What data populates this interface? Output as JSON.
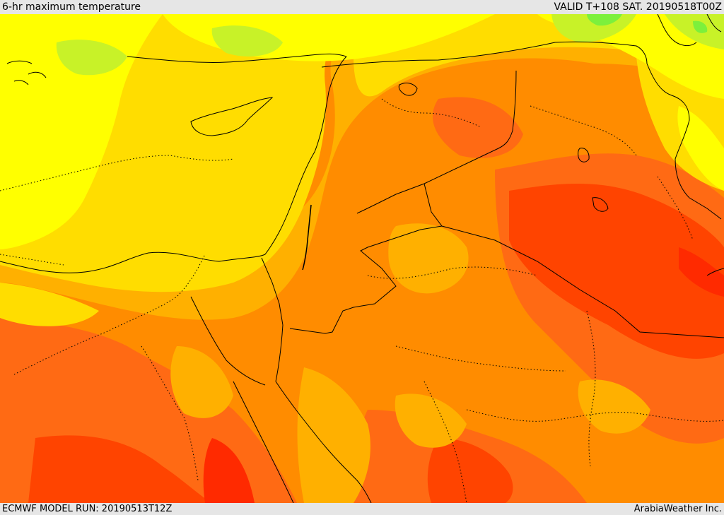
{
  "header": {
    "product_title": "6-hr maximum temperature",
    "valid_time": "VALID T+108 SAT. 20190518T00Z"
  },
  "footer": {
    "model_run": "ECMWF MODEL RUN: 20190513T12Z",
    "credit": "ArabiaWeather Inc."
  },
  "palette": {
    "green": "#7cf03c",
    "lime": "#c8f228",
    "yellow": "#ffff00",
    "gold": "#ffdd00",
    "amber": "#ffb000",
    "orange": "#ff8c00",
    "dark_orange": "#ff6a14",
    "red_orange": "#ff4400",
    "red": "#ff2a00"
  }
}
